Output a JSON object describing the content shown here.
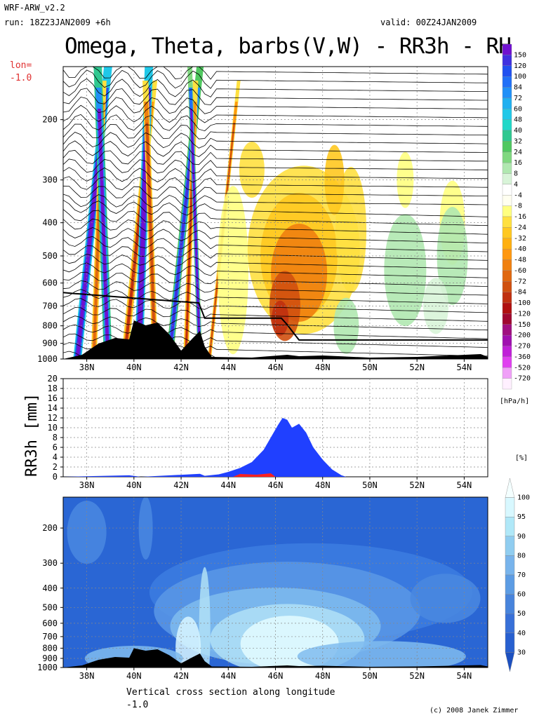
{
  "header": {
    "model": "WRF-ARW_v2.2",
    "run": "run: 18Z23JAN2009 +6h",
    "valid": "valid: 00Z24JAN2009",
    "title": "Omega, Theta, barbs(V,W) - RR3h - RH",
    "lon_label": "lon=",
    "lon_value": "-1.0"
  },
  "footer": {
    "caption": "Vertical cross section along longitude",
    "lon_value": "-1.0",
    "credit": "(c) 2008 Janek Zimmer"
  },
  "colors": {
    "omega_neg_max": "#7010c0",
    "omega_pos": "#e07010",
    "terrain": "#000000",
    "precip_blue": "#2040ff",
    "precip_red": "#ff2020",
    "rh_high": "#e8ffff",
    "rh_low": "#2060d8"
  },
  "chart_data": [
    {
      "type": "heatmap",
      "title": "Omega, Theta, barbs(V,W)",
      "xlabel": "",
      "ylabel": "",
      "x_ticks": [
        "38N",
        "40N",
        "42N",
        "44N",
        "46N",
        "48N",
        "50N",
        "52N",
        "54N"
      ],
      "y_ticks": [
        "200",
        "300",
        "400",
        "500",
        "600",
        "700",
        "800",
        "900",
        "1000"
      ],
      "y_scale": "log-pressure",
      "colorbar": {
        "unit": "[hPa/h]",
        "levels": [
          "150",
          "120",
          "100",
          "84",
          "72",
          "60",
          "48",
          "40",
          "32",
          "24",
          "16",
          "8",
          "4",
          "-4",
          "-8",
          "-16",
          "-24",
          "-32",
          "-40",
          "-48",
          "-60",
          "-72",
          "-84",
          "-100",
          "-120",
          "-150",
          "-200",
          "-270",
          "-360",
          "-520",
          "-720"
        ],
        "colors": [
          "#7010d0",
          "#4030e0",
          "#2050f0",
          "#2070f8",
          "#2090f8",
          "#20b0f0",
          "#20c8e8",
          "#20d8c8",
          "#30c890",
          "#50c860",
          "#80d880",
          "#b0e8b0",
          "#d8f4d8",
          "#ffffff",
          "#fffff0",
          "#ffff80",
          "#ffe040",
          "#ffc820",
          "#ffb010",
          "#ff9810",
          "#f08010",
          "#e06810",
          "#d05010",
          "#c03010",
          "#b01010",
          "#a00830",
          "#a01080",
          "#a010b0",
          "#c020d8",
          "#e040f0",
          "#f0a0f8",
          "#fff0ff"
        ]
      },
      "grid": true
    },
    {
      "type": "area",
      "title": "",
      "ylabel": "RR3h [mm]",
      "xlabel": "",
      "ylim": [
        0,
        20
      ],
      "y_ticks": [
        "0",
        "2",
        "4",
        "6",
        "8",
        "10",
        "12",
        "14",
        "16",
        "18",
        "20"
      ],
      "x_ticks": [
        "38N",
        "40N",
        "42N",
        "44N",
        "46N",
        "48N",
        "50N",
        "52N",
        "54N"
      ],
      "x": [
        37.0,
        39.8,
        40.3,
        42.8,
        43.0,
        43.6,
        44.0,
        44.5,
        45.0,
        45.5,
        45.8,
        46.1,
        46.3,
        46.5,
        46.7,
        47.0,
        47.3,
        47.6,
        48.0,
        48.4,
        48.8,
        49.0,
        55.0
      ],
      "series": [
        {
          "name": "",
          "values": [
            0,
            0.3,
            0,
            0.6,
            0.2,
            0.5,
            1.0,
            1.8,
            3.0,
            5.5,
            8.0,
            10.5,
            12.0,
            11.6,
            10.0,
            10.8,
            9.0,
            6.0,
            3.5,
            1.5,
            0.3,
            0,
            0
          ]
        }
      ],
      "grid": true
    },
    {
      "type": "heatmap",
      "title": "RH",
      "xlabel": "",
      "ylabel": "",
      "x_ticks": [
        "38N",
        "40N",
        "42N",
        "44N",
        "46N",
        "48N",
        "50N",
        "52N",
        "54N"
      ],
      "y_ticks": [
        "200",
        "300",
        "400",
        "500",
        "600",
        "700",
        "800",
        "900",
        "1000"
      ],
      "colorbar": {
        "unit": "[%]",
        "levels": [
          "100",
          "95",
          "90",
          "80",
          "70",
          "60",
          "50",
          "40",
          "30"
        ],
        "colors": [
          "#f4ffff",
          "#d8f8ff",
          "#b0e8f8",
          "#90cdf0",
          "#78b4ec",
          "#5c9ce4",
          "#4884dc",
          "#3870d8",
          "#2860d0",
          "#1c50c0"
        ]
      },
      "grid": true
    }
  ]
}
